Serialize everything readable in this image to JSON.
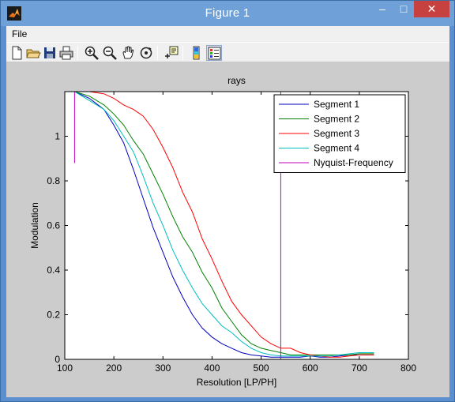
{
  "window": {
    "title": "Figure 1",
    "minimize": "–",
    "maximize": "□",
    "close": "✕"
  },
  "menu": {
    "items": [
      "File"
    ]
  },
  "toolbar": {
    "buttons": [
      "new-file-icon",
      "open-folder-icon",
      "save-icon",
      "print-icon",
      "zoom-in-icon",
      "zoom-out-icon",
      "pan-hand-icon",
      "rotate-3d-icon",
      "data-cursor-icon",
      "colorbar-icon",
      "legend-icon"
    ]
  },
  "chart_data": {
    "type": "line",
    "title": "rays",
    "xlabel": "Resolution [LP/PH]",
    "ylabel": "Modulation",
    "xlim": [
      100,
      800
    ],
    "ylim": [
      0,
      1.2
    ],
    "xticks": [
      100,
      200,
      300,
      400,
      500,
      600,
      700,
      800
    ],
    "yticks": [
      0,
      0.2,
      0.4,
      0.6,
      0.8,
      1
    ],
    "grid": false,
    "legend_position": "top-right",
    "series": [
      {
        "name": "Segment 1",
        "color": "#0000bf",
        "x": [
          120,
          150,
          180,
          200,
          220,
          240,
          260,
          280,
          300,
          320,
          340,
          360,
          380,
          400,
          420,
          440,
          460,
          480,
          500,
          520,
          540,
          560,
          580,
          600,
          620,
          640,
          660,
          680,
          700,
          720,
          730
        ],
        "y": [
          1.2,
          1.17,
          1.12,
          1.05,
          0.97,
          0.85,
          0.72,
          0.59,
          0.48,
          0.37,
          0.28,
          0.2,
          0.14,
          0.1,
          0.07,
          0.05,
          0.03,
          0.02,
          0.015,
          0.01,
          0.01,
          0.01,
          0.01,
          0.015,
          0.01,
          0.01,
          0.015,
          0.02,
          0.02,
          0.02,
          0.02
        ]
      },
      {
        "name": "Segment 2",
        "color": "#008000",
        "x": [
          120,
          150,
          180,
          200,
          220,
          240,
          260,
          280,
          300,
          320,
          340,
          360,
          380,
          400,
          420,
          440,
          460,
          480,
          500,
          520,
          540,
          560,
          580,
          600,
          620,
          640,
          660,
          680,
          700,
          720,
          730
        ],
        "y": [
          1.2,
          1.18,
          1.14,
          1.1,
          1.05,
          0.98,
          0.92,
          0.83,
          0.74,
          0.64,
          0.55,
          0.48,
          0.39,
          0.32,
          0.23,
          0.17,
          0.11,
          0.07,
          0.05,
          0.04,
          0.03,
          0.02,
          0.02,
          0.02,
          0.02,
          0.02,
          0.02,
          0.02,
          0.025,
          0.025,
          0.025
        ]
      },
      {
        "name": "Segment 3",
        "color": "#ff0000",
        "x": [
          120,
          150,
          180,
          200,
          220,
          240,
          260,
          280,
          300,
          320,
          340,
          360,
          380,
          400,
          420,
          440,
          460,
          480,
          500,
          520,
          540,
          560,
          580,
          600,
          620,
          640,
          660,
          680,
          700,
          720,
          730
        ],
        "y": [
          1.2,
          1.2,
          1.19,
          1.17,
          1.14,
          1.12,
          1.09,
          1.03,
          0.95,
          0.86,
          0.75,
          0.66,
          0.54,
          0.45,
          0.35,
          0.26,
          0.2,
          0.15,
          0.1,
          0.07,
          0.05,
          0.05,
          0.03,
          0.02,
          0.015,
          0.01,
          0.01,
          0.015,
          0.02,
          0.02,
          0.02
        ]
      },
      {
        "name": "Segment 4",
        "color": "#00bfbf",
        "x": [
          120,
          150,
          180,
          200,
          220,
          240,
          260,
          280,
          300,
          320,
          340,
          360,
          380,
          400,
          420,
          440,
          460,
          480,
          500,
          520,
          540,
          560,
          580,
          600,
          620,
          640,
          660,
          680,
          700,
          720,
          730
        ],
        "y": [
          1.2,
          1.16,
          1.12,
          1.07,
          1.0,
          0.93,
          0.82,
          0.7,
          0.6,
          0.49,
          0.4,
          0.32,
          0.25,
          0.2,
          0.15,
          0.12,
          0.08,
          0.05,
          0.03,
          0.02,
          0.015,
          0.015,
          0.015,
          0.015,
          0.015,
          0.015,
          0.02,
          0.025,
          0.03,
          0.03,
          0.03
        ]
      },
      {
        "name": "Nyquist-Frequency",
        "color": "#bf00bf",
        "x": [
          540,
          540
        ],
        "y": [
          0,
          1.2
        ]
      },
      {
        "name": "",
        "color": "#bf00bf",
        "x": [
          120,
          120
        ],
        "y": [
          0.88,
          1.2
        ]
      }
    ]
  }
}
